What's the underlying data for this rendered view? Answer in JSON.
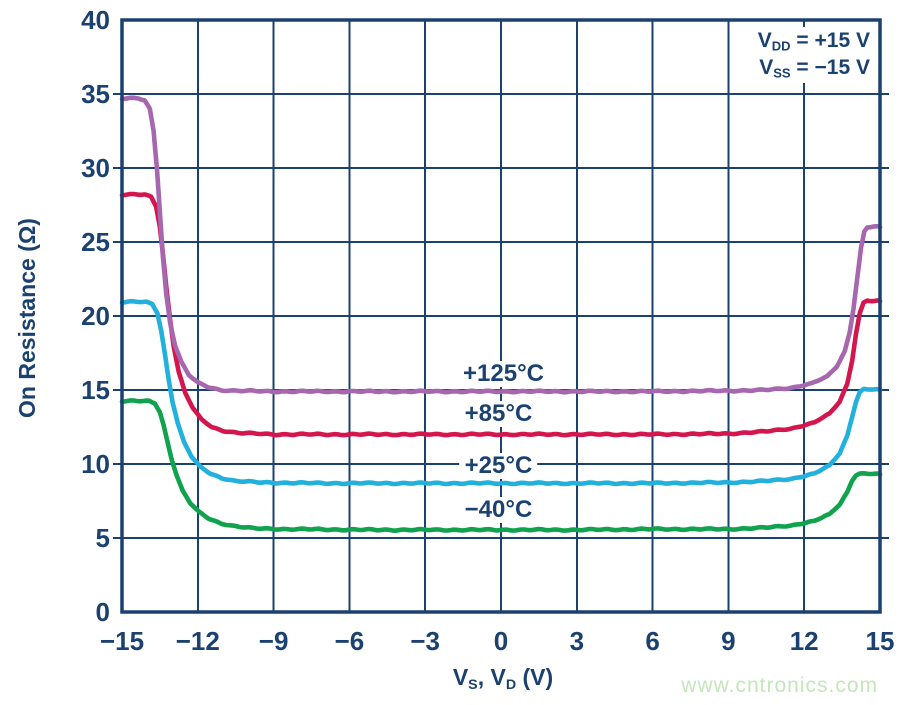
{
  "watermark": {
    "text": "www.cntronics.com",
    "color": "#c3e6ba"
  },
  "chart_data": {
    "type": "line",
    "title": "",
    "ylabel": "On Resistance (Ω)",
    "xlabel_parts": [
      {
        "base": "V",
        "sub": "S"
      },
      {
        "text": ", "
      },
      {
        "base": "V",
        "sub": "D"
      },
      {
        "text": " (V)"
      }
    ],
    "xlim": [
      -15,
      15
    ],
    "ylim": [
      0,
      40
    ],
    "x_ticks": [
      -15,
      -12,
      -9,
      -6,
      -3,
      0,
      3,
      6,
      9,
      12,
      15
    ],
    "y_ticks": [
      0,
      5,
      10,
      15,
      20,
      25,
      30,
      35,
      40
    ],
    "grid": true,
    "legend_position": "inline-curve-labels",
    "axis_color": "#1a416f",
    "annotation": {
      "lines": [
        {
          "base": "V",
          "sub": "DD",
          "rest": " = +15 V"
        },
        {
          "base": "V",
          "sub": "SS",
          "rest": " = −15 V"
        }
      ]
    },
    "series": [
      {
        "name": "minus-40C",
        "label": "−40°C",
        "color": "#10a24c",
        "label_pos": {
          "x": -0.1,
          "y": 6.9
        },
        "points": [
          [
            -15,
            14.25
          ],
          [
            -13.95,
            14.25
          ],
          [
            -13.7,
            14.1
          ],
          [
            -13.5,
            13.5
          ],
          [
            -13.35,
            12.6
          ],
          [
            -13.2,
            11.5
          ],
          [
            -13.05,
            10.4
          ],
          [
            -12.85,
            9.3
          ],
          [
            -12.6,
            8.2
          ],
          [
            -12.3,
            7.35
          ],
          [
            -11.95,
            6.75
          ],
          [
            -11.55,
            6.3
          ],
          [
            -11.1,
            6.0
          ],
          [
            -10.55,
            5.8
          ],
          [
            -9.8,
            5.65
          ],
          [
            -8.5,
            5.6
          ],
          [
            -5,
            5.55
          ],
          [
            -2,
            5.55
          ],
          [
            0,
            5.55
          ],
          [
            3,
            5.55
          ],
          [
            6,
            5.6
          ],
          [
            9,
            5.6
          ],
          [
            10.5,
            5.7
          ],
          [
            11.5,
            5.85
          ],
          [
            12.4,
            6.15
          ],
          [
            13.0,
            6.6
          ],
          [
            13.4,
            7.25
          ],
          [
            13.7,
            8.1
          ],
          [
            13.9,
            8.9
          ],
          [
            14.05,
            9.25
          ],
          [
            14.2,
            9.35
          ],
          [
            14.6,
            9.35
          ],
          [
            15,
            9.3
          ]
        ]
      },
      {
        "name": "plus-25C",
        "label": "+25°C",
        "color": "#22b1dc",
        "label_pos": {
          "x": -0.1,
          "y": 9.85
        },
        "points": [
          [
            -15,
            20.95
          ],
          [
            -14.05,
            20.95
          ],
          [
            -13.8,
            20.8
          ],
          [
            -13.6,
            20.2
          ],
          [
            -13.45,
            19.0
          ],
          [
            -13.3,
            17.4
          ],
          [
            -13.15,
            15.7
          ],
          [
            -13.0,
            14.2
          ],
          [
            -12.8,
            12.8
          ],
          [
            -12.55,
            11.5
          ],
          [
            -12.25,
            10.5
          ],
          [
            -11.9,
            9.8
          ],
          [
            -11.5,
            9.35
          ],
          [
            -11.05,
            9.05
          ],
          [
            -10.5,
            8.85
          ],
          [
            -9.5,
            8.75
          ],
          [
            -7,
            8.7
          ],
          [
            -3,
            8.7
          ],
          [
            0,
            8.7
          ],
          [
            3,
            8.7
          ],
          [
            6,
            8.7
          ],
          [
            9,
            8.75
          ],
          [
            10.5,
            8.85
          ],
          [
            11.5,
            9.0
          ],
          [
            12.4,
            9.35
          ],
          [
            13.0,
            9.9
          ],
          [
            13.4,
            10.7
          ],
          [
            13.7,
            11.9
          ],
          [
            13.9,
            13.2
          ],
          [
            14.05,
            14.2
          ],
          [
            14.2,
            14.85
          ],
          [
            14.35,
            15.05
          ],
          [
            14.6,
            15.05
          ],
          [
            15,
            15.0
          ]
        ]
      },
      {
        "name": "plus-85C",
        "label": "+85°C",
        "color": "#d3174e",
        "label_pos": {
          "x": -0.1,
          "y": 13.35
        },
        "points": [
          [
            -15,
            28.2
          ],
          [
            -14.1,
            28.2
          ],
          [
            -13.85,
            28.05
          ],
          [
            -13.65,
            27.4
          ],
          [
            -13.5,
            26.0
          ],
          [
            -13.38,
            24.2
          ],
          [
            -13.25,
            22.0
          ],
          [
            -13.1,
            19.8
          ],
          [
            -12.95,
            17.9
          ],
          [
            -12.75,
            16.2
          ],
          [
            -12.5,
            14.8
          ],
          [
            -12.2,
            13.8
          ],
          [
            -11.85,
            13.0
          ],
          [
            -11.45,
            12.5
          ],
          [
            -11.0,
            12.25
          ],
          [
            -10.4,
            12.1
          ],
          [
            -9,
            12.0
          ],
          [
            -6,
            12.0
          ],
          [
            -3,
            12.0
          ],
          [
            0,
            12.0
          ],
          [
            3,
            12.0
          ],
          [
            6,
            12.0
          ],
          [
            9,
            12.05
          ],
          [
            10.5,
            12.2
          ],
          [
            11.5,
            12.4
          ],
          [
            12.4,
            12.8
          ],
          [
            13.0,
            13.4
          ],
          [
            13.4,
            14.2
          ],
          [
            13.7,
            15.4
          ],
          [
            13.9,
            17.0
          ],
          [
            14.05,
            18.8
          ],
          [
            14.2,
            20.2
          ],
          [
            14.35,
            20.9
          ],
          [
            14.5,
            21.05
          ],
          [
            14.75,
            21.0
          ],
          [
            15,
            21.0
          ]
        ]
      },
      {
        "name": "plus-125C",
        "label": "+125°C",
        "color": "#a767af",
        "label_pos": {
          "x": 0.1,
          "y": 16.1
        },
        "points": [
          [
            -15,
            34.7
          ],
          [
            -14.35,
            34.7
          ],
          [
            -14.1,
            34.55
          ],
          [
            -13.9,
            34.0
          ],
          [
            -13.75,
            32.5
          ],
          [
            -13.62,
            30.0
          ],
          [
            -13.5,
            27.0
          ],
          [
            -13.38,
            24.0
          ],
          [
            -13.25,
            21.5
          ],
          [
            -13.1,
            19.6
          ],
          [
            -12.9,
            18.0
          ],
          [
            -12.65,
            16.9
          ],
          [
            -12.35,
            16.0
          ],
          [
            -12.0,
            15.5
          ],
          [
            -11.6,
            15.2
          ],
          [
            -11.1,
            15.0
          ],
          [
            -10.5,
            14.95
          ],
          [
            -9,
            14.9
          ],
          [
            -6,
            14.9
          ],
          [
            -3,
            14.9
          ],
          [
            0,
            14.9
          ],
          [
            3,
            14.9
          ],
          [
            6,
            14.9
          ],
          [
            9,
            14.95
          ],
          [
            10.5,
            15.0
          ],
          [
            11.5,
            15.15
          ],
          [
            12.3,
            15.45
          ],
          [
            12.9,
            15.9
          ],
          [
            13.3,
            16.6
          ],
          [
            13.6,
            17.6
          ],
          [
            13.8,
            18.9
          ],
          [
            13.95,
            20.5
          ],
          [
            14.1,
            22.6
          ],
          [
            14.25,
            24.6
          ],
          [
            14.38,
            25.7
          ],
          [
            14.5,
            26.0
          ],
          [
            14.75,
            26.05
          ],
          [
            15,
            26.0
          ]
        ]
      }
    ]
  }
}
